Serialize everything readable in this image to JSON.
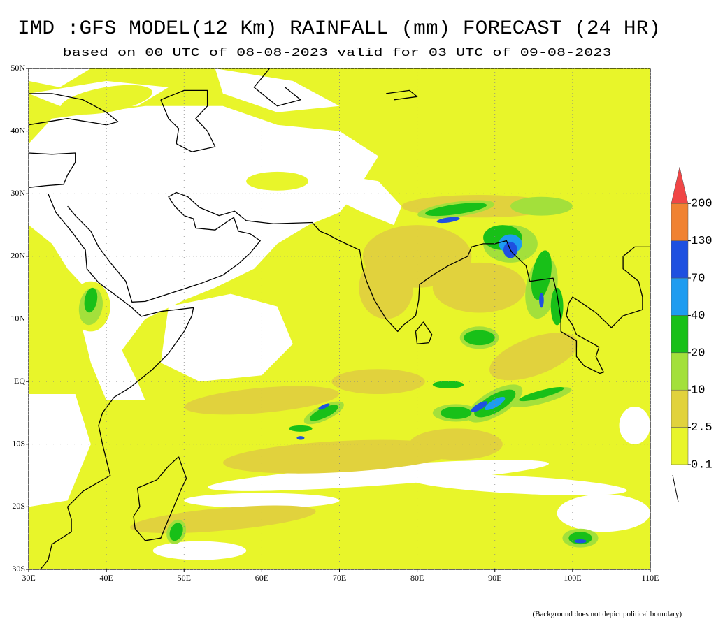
{
  "title": "IMD :GFS MODEL(12 Km) RAINFALL (mm) FORECAST (24 HR)",
  "subtitle": "based on 00 UTC of 08-08-2023 valid for 03 UTC of 09-08-2023",
  "map": {
    "lon_range": [
      30,
      110
    ],
    "lat_range": [
      -30,
      50
    ],
    "lon_ticks": [
      {
        "value": 30,
        "label": "30E"
      },
      {
        "value": 40,
        "label": "40E"
      },
      {
        "value": 50,
        "label": "50E"
      },
      {
        "value": 60,
        "label": "60E"
      },
      {
        "value": 70,
        "label": "70E"
      },
      {
        "value": 80,
        "label": "80E"
      },
      {
        "value": 90,
        "label": "90E"
      },
      {
        "value": 100,
        "label": "100E"
      },
      {
        "value": 110,
        "label": "110E"
      }
    ],
    "lat_ticks": [
      {
        "value": 50,
        "label": "50N"
      },
      {
        "value": 40,
        "label": "40N"
      },
      {
        "value": 30,
        "label": "30N"
      },
      {
        "value": 20,
        "label": "20N"
      },
      {
        "value": 10,
        "label": "10N"
      },
      {
        "value": 0,
        "label": "EQ"
      },
      {
        "value": -10,
        "label": "10S"
      },
      {
        "value": -20,
        "label": "20S"
      },
      {
        "value": -30,
        "label": "30S"
      }
    ]
  },
  "legend": {
    "levels": [
      0.1,
      2.5,
      10,
      20,
      40,
      70,
      130,
      200
    ],
    "colors": [
      "#e8f52a",
      "#e1d23d",
      "#a3e03b",
      "#18c018",
      "#1e9cf0",
      "#1e50e0",
      "#f08232",
      "#f04646"
    ]
  },
  "footnote": "(Background does not depict political boundary)"
}
